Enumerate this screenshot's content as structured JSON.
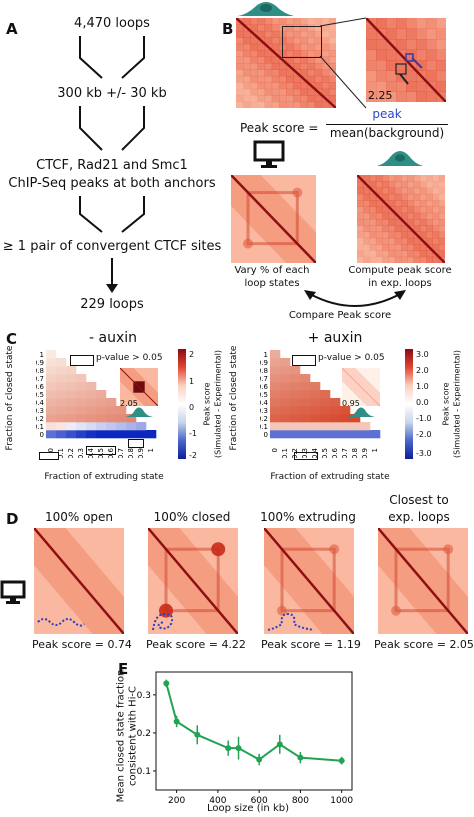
{
  "panels": {
    "A": {
      "label": "A",
      "steps": [
        "4,470 loops",
        "300 kb +/- 30 kb",
        "CTCF, Rad21 and Smc1",
        "ChIP-Seq peaks at both anchors",
        "≥ 1 pair of convergent CTCF sites",
        "229 loops"
      ]
    },
    "B": {
      "label": "B",
      "inset_value": "2.25",
      "formula_lhs": "Peak score =",
      "formula_num": "peak",
      "formula_den": "mean(background)",
      "left_caption": [
        "Vary % of each",
        "loop states"
      ],
      "right_caption": [
        "Compute peak score",
        "in exp. loops"
      ],
      "compare": "Compare Peak score"
    },
    "C": {
      "label": "C",
      "left_title": "- auxin",
      "right_title": "+ auxin",
      "ylabel": "Fraction of closed state",
      "xlabel": "Fraction of extruding state",
      "ticks": [
        "0",
        "0.1",
        "0.2",
        "0.3",
        "0.4",
        "0.5",
        "0.6",
        "0.7",
        "0.8",
        "0.9",
        "1"
      ],
      "pvalue": "p-value > 0.05",
      "left_inset": "2.05",
      "right_inset": "0.95",
      "cbar_label": [
        "Peak score",
        "(Simulated - Experimental)"
      ],
      "left_cbar_ticks": [
        "2",
        "1",
        "0",
        "-1",
        "-2"
      ],
      "right_cbar_ticks": [
        "3.0",
        "2.0",
        "1.0",
        "0.0",
        "-1.0",
        "-2.0",
        "-3.0"
      ]
    },
    "D": {
      "label": "D",
      "maps": [
        {
          "title": "100% open",
          "score": "Peak score = 0.74"
        },
        {
          "title": "100% closed",
          "score": "Peak score = 4.22"
        },
        {
          "title": "100% extruding",
          "score": "Peak score = 1.19"
        },
        {
          "title": "Closest to exp. loops",
          "title_lines": [
            "Closest to",
            "exp. loops"
          ],
          "score": "Peak score = 2.05"
        }
      ]
    },
    "E": {
      "label": "E",
      "ylabel": [
        "Mean closed state fraction",
        "consistent with Hi-C"
      ],
      "xlabel": "Loop size (in kb)",
      "xticks": [
        "200",
        "400",
        "600",
        "800",
        "1000"
      ],
      "yticks": [
        "0.1",
        "0.2",
        "0.3"
      ]
    }
  },
  "chart_data": {
    "type": "line",
    "x": [
      150,
      200,
      300,
      450,
      500,
      600,
      700,
      800,
      1000
    ],
    "y": [
      0.33,
      0.23,
      0.195,
      0.16,
      0.16,
      0.13,
      0.17,
      0.135,
      0.127
    ],
    "yerr": [
      0.01,
      0.015,
      0.025,
      0.02,
      0.03,
      0.015,
      0.025,
      0.015,
      0.01
    ],
    "xlabel": "Loop size (in kb)",
    "ylabel": "Mean closed state fraction consistent with Hi-C",
    "xlim": [
      100,
      1050
    ],
    "ylim": [
      0.05,
      0.36
    ],
    "color": "#22a352"
  }
}
